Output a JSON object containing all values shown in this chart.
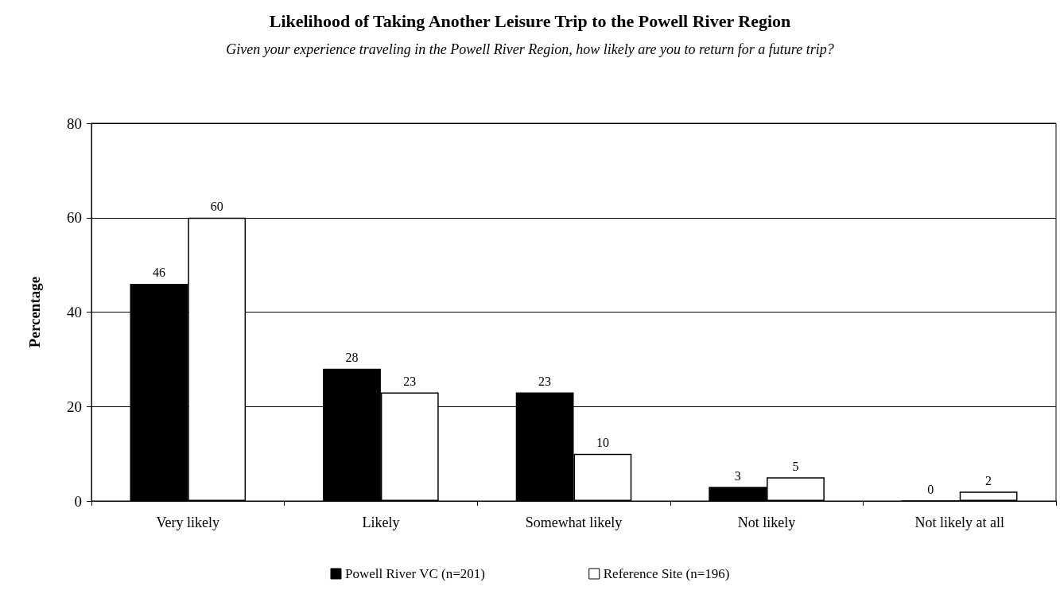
{
  "chart_data": {
    "type": "bar",
    "title": "Likelihood of Taking Another Leisure Trip to the Powell River Region",
    "subtitle": "Given your experience traveling in the Powell River Region, how likely are you to return for a future trip?",
    "ylabel": "Percentage",
    "categories": [
      "Very likely",
      "Likely",
      "Somewhat likely",
      "Not likely",
      "Not likely at all"
    ],
    "series": [
      {
        "name": "Powell River VC (n=201)",
        "color": "#000000",
        "values": [
          46,
          28,
          23,
          3,
          0
        ]
      },
      {
        "name": "Reference Site (n=196)",
        "color": "#ffffff",
        "values": [
          60,
          23,
          10,
          5,
          2
        ]
      }
    ],
    "ylim": [
      0,
      80
    ],
    "yticks": [
      0,
      20,
      40,
      60,
      80
    ],
    "grid": "y",
    "legend": "bottom",
    "data_labels": true
  }
}
